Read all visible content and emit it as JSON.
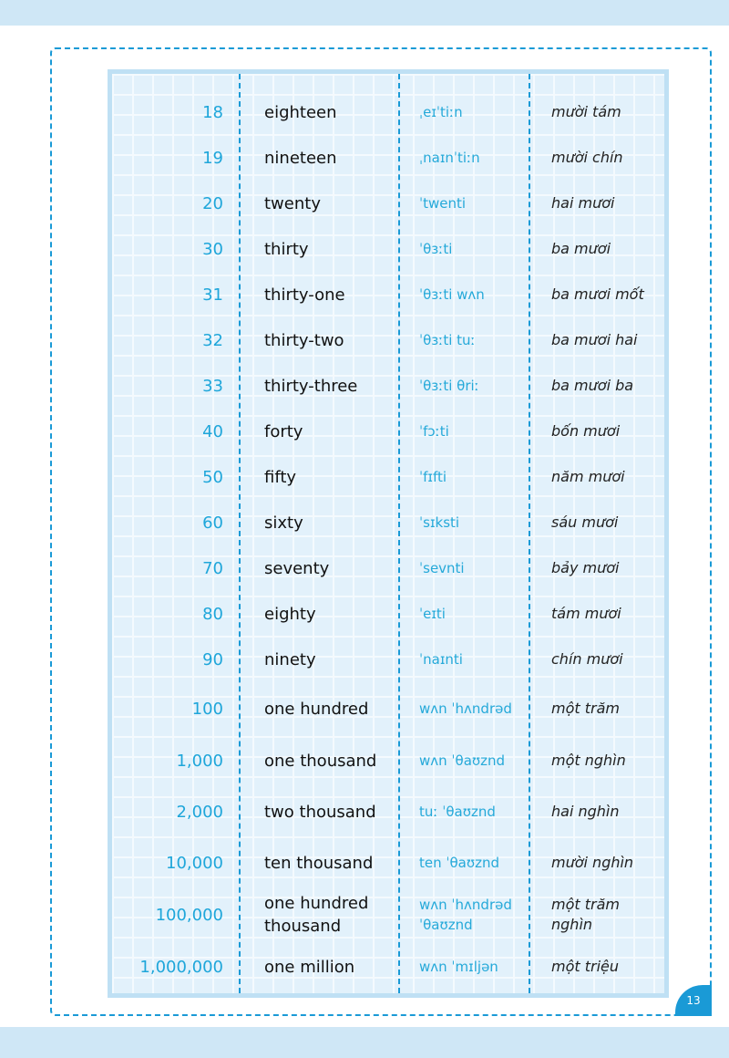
{
  "rows": [
    {
      "number": "18",
      "english": "eighteen",
      "ipa": "ˌeɪˈtiːn",
      "vietnamese": "mười tám"
    },
    {
      "number": "19",
      "english": "nineteen",
      "ipa": "ˌnaɪnˈtiːn",
      "vietnamese": "mười chín"
    },
    {
      "number": "20",
      "english": "twenty",
      "ipa": "ˈtwenti",
      "vietnamese": "hai mươi"
    },
    {
      "number": "30",
      "english": "thirty",
      "ipa": "ˈθɜːti",
      "vietnamese": "ba mươi"
    },
    {
      "number": "31",
      "english": "thirty-one",
      "ipa": "ˈθɜːti wʌn",
      "vietnamese": "ba mươi mốt"
    },
    {
      "number": "32",
      "english": "thirty-two",
      "ipa": "ˈθɜːti tuː",
      "vietnamese": "ba mươi hai"
    },
    {
      "number": "33",
      "english": "thirty-three",
      "ipa": "ˈθɜːti θriː",
      "vietnamese": "ba mươi ba"
    },
    {
      "number": "40",
      "english": "forty",
      "ipa": "ˈfɔːti",
      "vietnamese": "bốn mươi"
    },
    {
      "number": "50",
      "english": "fifty",
      "ipa": "ˈfɪfti",
      "vietnamese": "năm mươi"
    },
    {
      "number": "60",
      "english": "sixty",
      "ipa": "ˈsɪksti",
      "vietnamese": "sáu mươi"
    },
    {
      "number": "70",
      "english": "seventy",
      "ipa": "ˈsevnti",
      "vietnamese": "bảy mươi"
    },
    {
      "number": "80",
      "english": "eighty",
      "ipa": "ˈeɪti",
      "vietnamese": "tám mươi"
    },
    {
      "number": "90",
      "english": "ninety",
      "ipa": "ˈnaɪnti",
      "vietnamese": "chín mươi"
    },
    {
      "number": "100",
      "english": "one hundred",
      "ipa": "wʌn ˈhʌndrəd",
      "vietnamese": "một trăm"
    },
    {
      "number": "1,000",
      "english": "one thousand",
      "ipa": "wʌn ˈθaʊznd",
      "vietnamese": "một nghìn"
    },
    {
      "number": "2,000",
      "english": "two thousand",
      "ipa": "tuː ˈθaʊznd",
      "vietnamese": "hai nghìn"
    },
    {
      "number": "10,000",
      "english": "ten thousand",
      "ipa": "ten ˈθaʊznd",
      "vietnamese": "mười nghìn"
    },
    {
      "number": "100,000",
      "english": "one hundred thousand",
      "ipa": "wʌn ˈhʌndrəd ˈθaʊznd",
      "vietnamese": "một trăm nghìn"
    },
    {
      "number": "1,000,000",
      "english": "one million",
      "ipa": "wʌn ˈmɪljən",
      "vietnamese": "một triệu"
    }
  ],
  "page_number": "13",
  "colors": {
    "accent": "#1a9ad6",
    "number_text": "#1ea6da",
    "panel": "#e2f1fb",
    "background": "#cfe7f6"
  }
}
